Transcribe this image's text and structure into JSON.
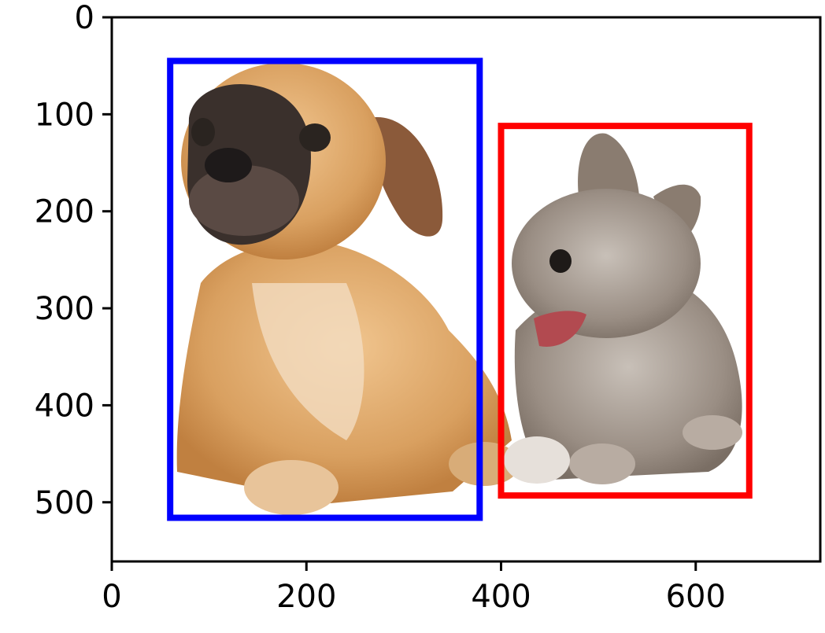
{
  "chart_data": {
    "type": "image",
    "image_width": 728,
    "image_height": 561,
    "xlim": [
      0,
      728
    ],
    "ylim": [
      561,
      0
    ],
    "y_inverted": true,
    "grid": false,
    "title": "",
    "xlabel": "",
    "ylabel": "",
    "x_ticks": [
      0,
      200,
      400,
      600
    ],
    "x_tick_labels": [
      "0",
      "200",
      "400",
      "600"
    ],
    "y_ticks": [
      0,
      100,
      200,
      300,
      400,
      500
    ],
    "y_tick_labels": [
      "0",
      "100",
      "200",
      "300",
      "400",
      "500"
    ],
    "image_content": [
      "dog",
      "cat"
    ],
    "bounding_boxes": [
      {
        "object": "dog",
        "color": "#0000ff",
        "x1": 60,
        "y1": 45,
        "x2": 378,
        "y2": 516
      },
      {
        "object": "cat",
        "color": "#ff0000",
        "x1": 400,
        "y1": 112,
        "x2": 655,
        "y2": 493
      }
    ]
  }
}
